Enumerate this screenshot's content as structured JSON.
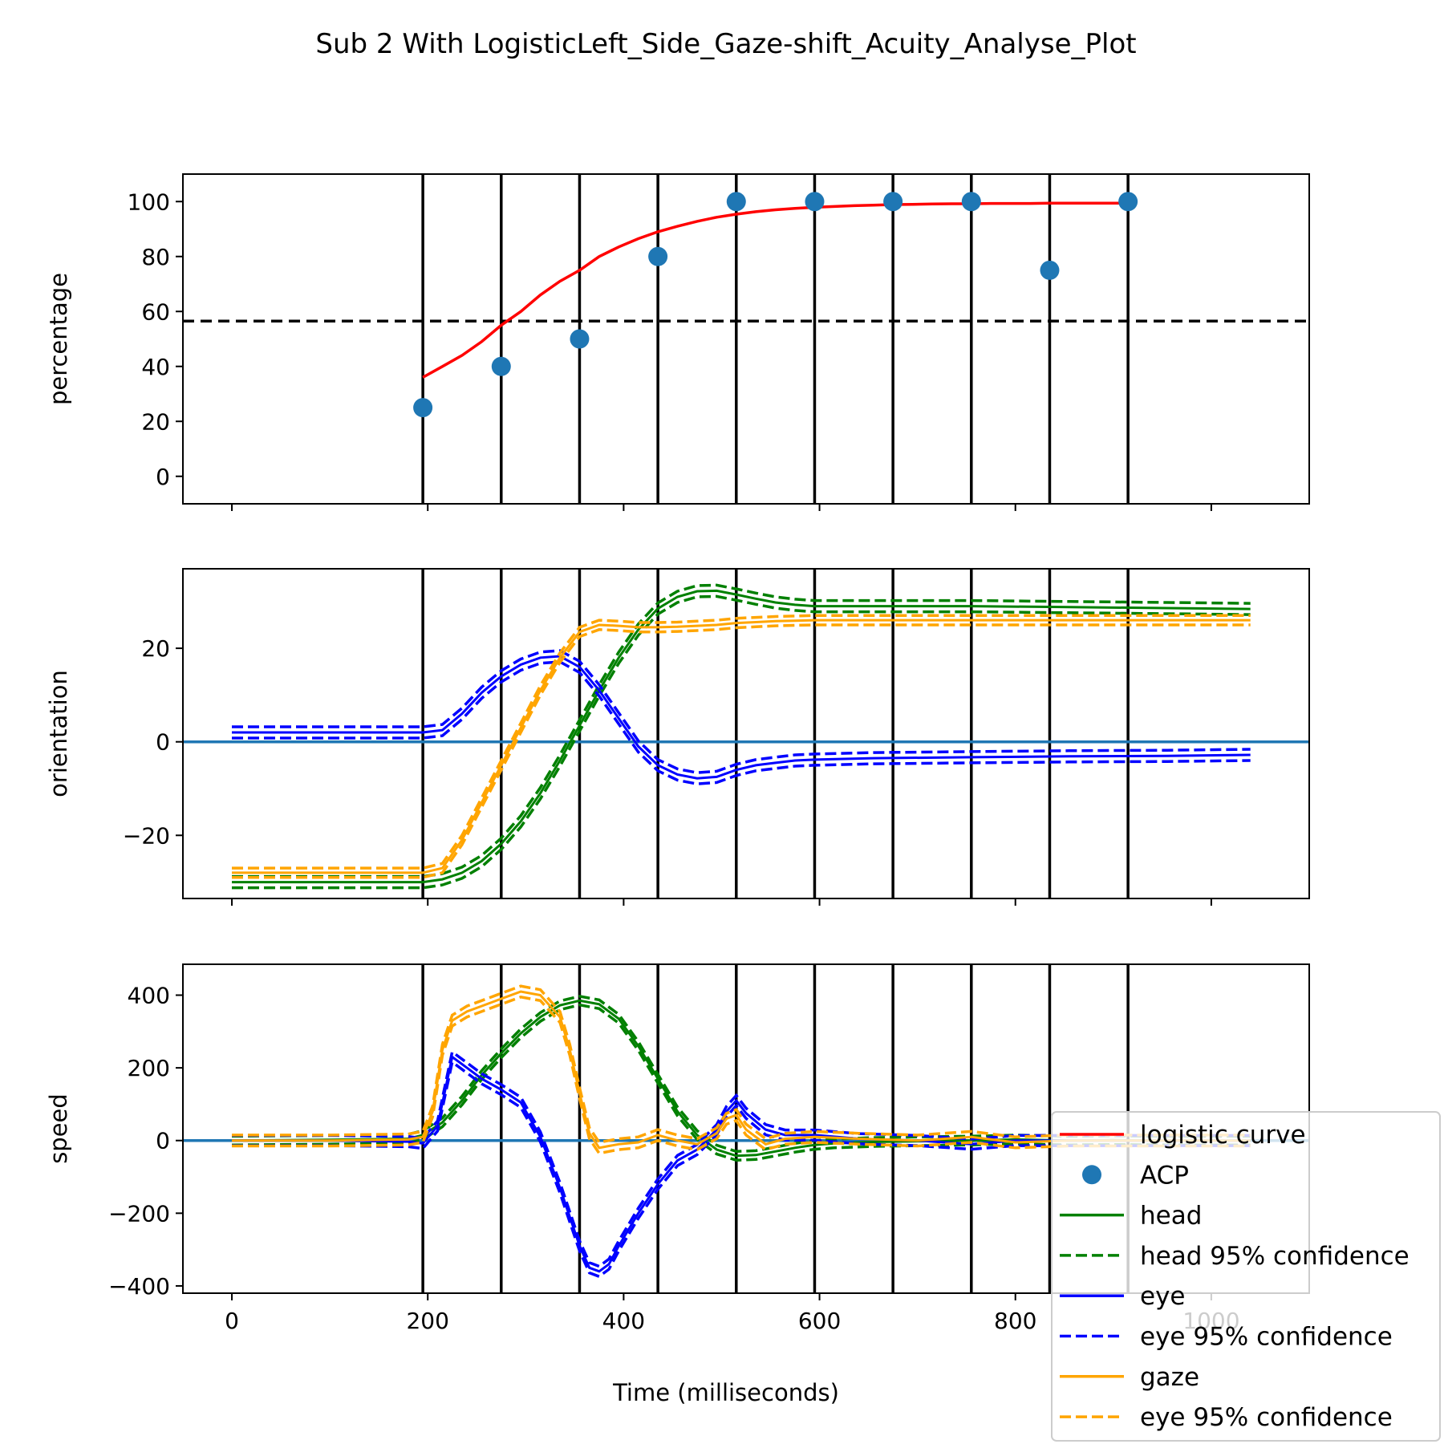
{
  "figure": {
    "title": "Sub 2 With LogisticLeft_Side_Gaze-shift_Acuity_Analyse_Plot",
    "xlabel": "Time (milliseconds)"
  },
  "chart_data": [
    {
      "type": "line",
      "panel": "top",
      "ylabel": "percentage",
      "xlim": [
        -50,
        1100
      ],
      "ylim": [
        -10,
        110
      ],
      "xticks": [
        0,
        200,
        400,
        600,
        800,
        1000
      ],
      "yticks": [
        0,
        20,
        40,
        60,
        80,
        100
      ],
      "vlines": [
        195,
        275,
        355,
        435,
        515,
        595,
        675,
        755,
        835,
        915
      ],
      "threshold_line": {
        "y": 56.5,
        "style": "dashed",
        "color": "#000000"
      },
      "series": [
        {
          "name": "logistic curve",
          "kind": "line",
          "color": "#ff0000",
          "x": [
            195,
            215,
            235,
            255,
            275,
            295,
            315,
            335,
            355,
            375,
            395,
            415,
            435,
            455,
            475,
            495,
            515,
            535,
            555,
            575,
            595,
            615,
            635,
            655,
            675,
            695,
            715,
            735,
            755,
            775,
            795,
            815,
            835,
            855,
            875,
            895,
            915
          ],
          "y": [
            36,
            40,
            44,
            49,
            55,
            60,
            66,
            71,
            75,
            80,
            83.5,
            86.5,
            89,
            91,
            92.8,
            94.3,
            95.4,
            96.3,
            97,
            97.5,
            97.9,
            98.2,
            98.5,
            98.7,
            98.9,
            99,
            99.1,
            99.2,
            99.2,
            99.3,
            99.3,
            99.3,
            99.4,
            99.4,
            99.4,
            99.4,
            99.4
          ]
        },
        {
          "name": "ACP",
          "kind": "scatter",
          "color": "#1f77b4",
          "x": [
            195,
            275,
            355,
            435,
            515,
            595,
            675,
            755,
            835,
            915
          ],
          "y": [
            25,
            40,
            50,
            80,
            100,
            100,
            100,
            100,
            75,
            100
          ]
        }
      ]
    },
    {
      "type": "line",
      "panel": "middle",
      "ylabel": "orientation",
      "xlim": [
        -50,
        1100
      ],
      "ylim": [
        -33.5,
        37
      ],
      "yticks": [
        -20,
        0,
        20
      ],
      "vlines": [
        195,
        275,
        355,
        435,
        515,
        595,
        675,
        755,
        835,
        915
      ],
      "zero_line": {
        "y": 0,
        "color": "#1f77b4"
      },
      "series": [
        {
          "name": "head",
          "color": "#008000",
          "ci": 1.2,
          "x": [
            0,
            100,
            195,
            215,
            235,
            255,
            275,
            295,
            315,
            335,
            355,
            375,
            395,
            415,
            435,
            455,
            475,
            495,
            515,
            535,
            555,
            575,
            595,
            655,
            755,
            855,
            955,
            1040
          ],
          "y": [
            -30,
            -30,
            -30,
            -29.4,
            -28,
            -25.5,
            -21.8,
            -17,
            -11,
            -4,
            3.5,
            11,
            18,
            24,
            28.5,
            31,
            32.2,
            32.3,
            31.5,
            30.6,
            29.8,
            29.3,
            29,
            29,
            29,
            28.8,
            28.6,
            28.4
          ]
        },
        {
          "name": "eye",
          "color": "#0000ff",
          "ci": 1.2,
          "x": [
            0,
            100,
            195,
            215,
            235,
            255,
            275,
            295,
            315,
            335,
            355,
            375,
            395,
            415,
            435,
            455,
            475,
            495,
            515,
            535,
            555,
            575,
            595,
            655,
            755,
            855,
            955,
            1040
          ],
          "y": [
            2,
            2,
            2,
            2.5,
            6,
            10.5,
            14,
            16.5,
            18,
            18.3,
            16,
            11,
            5,
            -1,
            -5,
            -7,
            -7.8,
            -7.5,
            -6,
            -5,
            -4.5,
            -4,
            -3.8,
            -3.5,
            -3.3,
            -3.1,
            -3,
            -2.8
          ]
        },
        {
          "name": "gaze",
          "color": "#ffa500",
          "ci": 1.0,
          "x": [
            0,
            100,
            195,
            215,
            235,
            255,
            275,
            295,
            315,
            335,
            355,
            375,
            395,
            415,
            435,
            455,
            475,
            495,
            515,
            535,
            555,
            575,
            595,
            655,
            755,
            855,
            955,
            1040
          ],
          "y": [
            -28,
            -28,
            -28,
            -27,
            -21,
            -13,
            -5,
            3,
            11,
            18,
            23.5,
            25,
            24.8,
            24.5,
            24.5,
            24.6,
            24.8,
            25,
            25.4,
            25.6,
            25.8,
            25.9,
            26,
            26,
            26,
            26,
            26,
            26
          ]
        }
      ]
    },
    {
      "type": "line",
      "panel": "bottom",
      "ylabel": "speed",
      "xlim": [
        -50,
        1100
      ],
      "ylim": [
        -420,
        485
      ],
      "yticks": [
        -400,
        -200,
        0,
        200,
        400
      ],
      "vlines": [
        195,
        275,
        355,
        435,
        515,
        595,
        675,
        755,
        835,
        915
      ],
      "zero_line": {
        "y": 0,
        "color": "#1f77b4"
      },
      "series": [
        {
          "name": "head",
          "color": "#008000",
          "ci": 12,
          "x": [
            0,
            100,
            180,
            195,
            215,
            235,
            255,
            275,
            295,
            315,
            335,
            355,
            375,
            395,
            415,
            435,
            455,
            475,
            495,
            515,
            535,
            555,
            575,
            595,
            615,
            655,
            700,
            755,
            800,
            855,
            900,
            955,
            1040
          ],
          "y": [
            0,
            2,
            5,
            15,
            50,
            110,
            180,
            240,
            295,
            340,
            372,
            385,
            375,
            335,
            260,
            170,
            80,
            15,
            -25,
            -42,
            -40,
            -30,
            -20,
            -12,
            -8,
            -4,
            -2,
            0,
            3,
            0,
            1,
            0,
            0
          ]
        },
        {
          "name": "eye",
          "color": "#0000ff",
          "ci": 14,
          "x": [
            0,
            100,
            180,
            195,
            210,
            225,
            240,
            255,
            275,
            295,
            315,
            335,
            355,
            365,
            375,
            385,
            395,
            415,
            435,
            455,
            475,
            495,
            505,
            515,
            525,
            545,
            565,
            595,
            640,
            700,
            755,
            800,
            855,
            955,
            1040
          ],
          "y": [
            0,
            0,
            -3,
            -8,
            40,
            230,
            200,
            170,
            140,
            105,
            10,
            -130,
            -290,
            -350,
            -360,
            -340,
            -290,
            -200,
            -120,
            -55,
            -25,
            30,
            80,
            110,
            75,
            30,
            15,
            15,
            5,
            0,
            -10,
            0,
            0,
            0,
            0
          ]
        },
        {
          "name": "gaze",
          "color": "#ffa500",
          "ci": 15,
          "x": [
            0,
            100,
            180,
            195,
            205,
            215,
            225,
            240,
            255,
            275,
            295,
            315,
            335,
            345,
            355,
            365,
            375,
            385,
            395,
            415,
            435,
            455,
            475,
            495,
            505,
            515,
            525,
            545,
            565,
            595,
            640,
            700,
            755,
            800,
            855,
            955,
            1040
          ],
          "y": [
            0,
            0,
            3,
            10,
            80,
            250,
            330,
            355,
            370,
            390,
            410,
            400,
            340,
            250,
            130,
            20,
            -20,
            -15,
            -10,
            -5,
            15,
            0,
            -10,
            20,
            60,
            70,
            30,
            -10,
            5,
            10,
            5,
            0,
            10,
            -5,
            0,
            0,
            0
          ]
        }
      ]
    }
  ],
  "legend": {
    "position": "lower-right",
    "entries": [
      {
        "label": "logistic curve",
        "color": "#ff0000",
        "kind": "line"
      },
      {
        "label": "ACP",
        "color": "#1f77b4",
        "kind": "marker"
      },
      {
        "label": "head",
        "color": "#008000",
        "kind": "line"
      },
      {
        "label": "head 95% confidence",
        "color": "#008000",
        "kind": "dashed"
      },
      {
        "label": "eye",
        "color": "#0000ff",
        "kind": "line"
      },
      {
        "label": "eye 95% confidence",
        "color": "#0000ff",
        "kind": "dashed"
      },
      {
        "label": "gaze",
        "color": "#ffa500",
        "kind": "line"
      },
      {
        "label": "eye 95% confidence",
        "color": "#ffa500",
        "kind": "dashed"
      }
    ]
  }
}
